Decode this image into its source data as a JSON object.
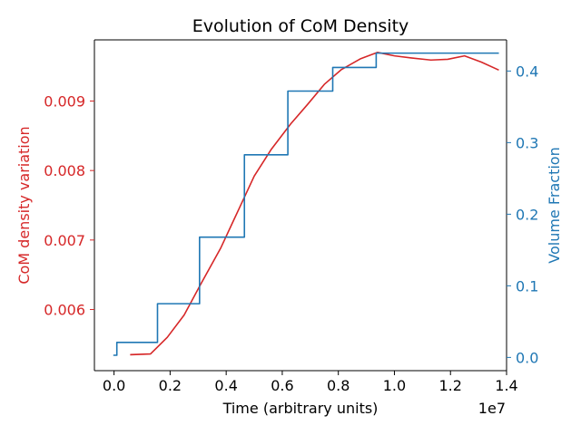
{
  "chart_data": {
    "type": "line",
    "title": "Evolution of CoM Density",
    "xlabel": "Time (arbitrary units)",
    "x_offset_label": "1e7",
    "xlim": [
      -0.07,
      1.4
    ],
    "x_ticks": [
      0.0,
      0.2,
      0.4,
      0.6,
      0.8,
      1.0,
      1.2,
      1.4
    ],
    "x_tick_labels": [
      "0.0",
      "0.2",
      "0.4",
      "0.6",
      "0.8",
      "1.0",
      "1.2",
      "1.4"
    ],
    "y_left": {
      "label": "CoM density variation",
      "color": "#d62728",
      "lim": [
        0.00512,
        0.00988
      ],
      "ticks": [
        0.006,
        0.007,
        0.008,
        0.009
      ],
      "tick_labels": [
        "0.006",
        "0.007",
        "0.008",
        "0.009"
      ]
    },
    "y_right": {
      "label": "Volume Fraction",
      "color": "#1f77b4",
      "lim": [
        -0.0185,
        0.4435
      ],
      "ticks": [
        0.0,
        0.1,
        0.2,
        0.3,
        0.4
      ],
      "tick_labels": [
        "0.0",
        "0.1",
        "0.2",
        "0.3",
        "0.4"
      ]
    },
    "series": [
      {
        "axis": "left",
        "color": "#d62728",
        "style": "line",
        "x": [
          0.06,
          0.13,
          0.19,
          0.25,
          0.31,
          0.38,
          0.44,
          0.5,
          0.56,
          0.63,
          0.69,
          0.75,
          0.81,
          0.88,
          0.94,
          1.0,
          1.06,
          1.13,
          1.19,
          1.25,
          1.31,
          1.37
        ],
        "y": [
          0.00535,
          0.00536,
          0.0056,
          0.00592,
          0.00637,
          0.00688,
          0.0074,
          0.00792,
          0.0083,
          0.00867,
          0.00895,
          0.00924,
          0.00945,
          0.00961,
          0.0097,
          0.00965,
          0.00962,
          0.00959,
          0.0096,
          0.00965,
          0.00956,
          0.00945
        ]
      },
      {
        "axis": "right",
        "color": "#1f77b4",
        "style": "step",
        "x": [
          0.0,
          0.01,
          0.01,
          0.155,
          0.155,
          0.305,
          0.305,
          0.465,
          0.465,
          0.62,
          0.62,
          0.78,
          0.78,
          0.935,
          0.935,
          1.37
        ],
        "y": [
          0.003,
          0.003,
          0.021,
          0.021,
          0.075,
          0.075,
          0.168,
          0.168,
          0.283,
          0.283,
          0.372,
          0.372,
          0.405,
          0.405,
          0.425,
          0.425
        ]
      }
    ]
  }
}
